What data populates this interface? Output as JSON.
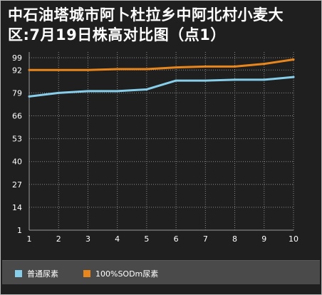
{
  "chart_data": {
    "type": "line",
    "title": "中石油塔城市阿卜杜拉乡中阿北村小麦大区:7月19日株高对比图（点1）",
    "xlabel": "",
    "ylabel": "",
    "x": [
      1,
      2,
      3,
      4,
      5,
      6,
      7,
      8,
      9,
      10
    ],
    "y_ticks": [
      1,
      14,
      27,
      40,
      53,
      66,
      79,
      92,
      99
    ],
    "ylim": [
      1,
      99
    ],
    "grid": true,
    "legend_position": "bottom",
    "series": [
      {
        "name": "普通尿素",
        "color": "#87ceeb",
        "values": [
          77,
          79,
          80,
          80,
          81,
          86,
          86,
          86.5,
          86.5,
          88
        ]
      },
      {
        "name": "100%SODm尿素",
        "color": "#e8861e",
        "values": [
          92,
          92,
          92,
          92.5,
          92.5,
          93.5,
          94,
          94,
          95.5,
          98
        ]
      }
    ]
  }
}
